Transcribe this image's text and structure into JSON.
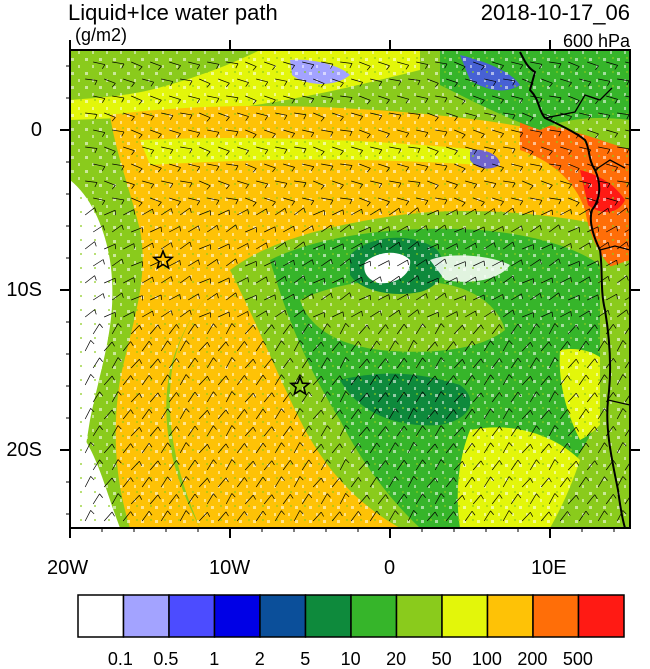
{
  "header": {
    "title": "Liquid+Ice water path",
    "units": "(g/m2)",
    "datetime": "2018-10-17_06",
    "level": "600 hPa"
  },
  "axes": {
    "y_labels": [
      "0",
      "10S",
      "20S"
    ],
    "x_labels": [
      "20W",
      "10W",
      "0",
      "10E"
    ]
  },
  "colorbar": {
    "labels": [
      "0.1",
      "0.5",
      "1",
      "2",
      "5",
      "10",
      "20",
      "50",
      "100",
      "200",
      "500"
    ],
    "colors": [
      "#ffffff",
      "#a3a3ff",
      "#4c4cff",
      "#0000e6",
      "#0b4f9a",
      "#0e8a3c",
      "#36b52a",
      "#8acb1c",
      "#e3f60a",
      "#fec206",
      "#ff6e08",
      "#ff1a14"
    ]
  },
  "markers": [
    "star",
    "star"
  ],
  "colors": {
    "orange": "#fec206",
    "yellow": "#e3f60a",
    "lime": "#8acb1c",
    "green": "#36b52a",
    "dgreen": "#0e8a3c",
    "red": "#ff6e08",
    "blue": "#a3a3ff"
  }
}
